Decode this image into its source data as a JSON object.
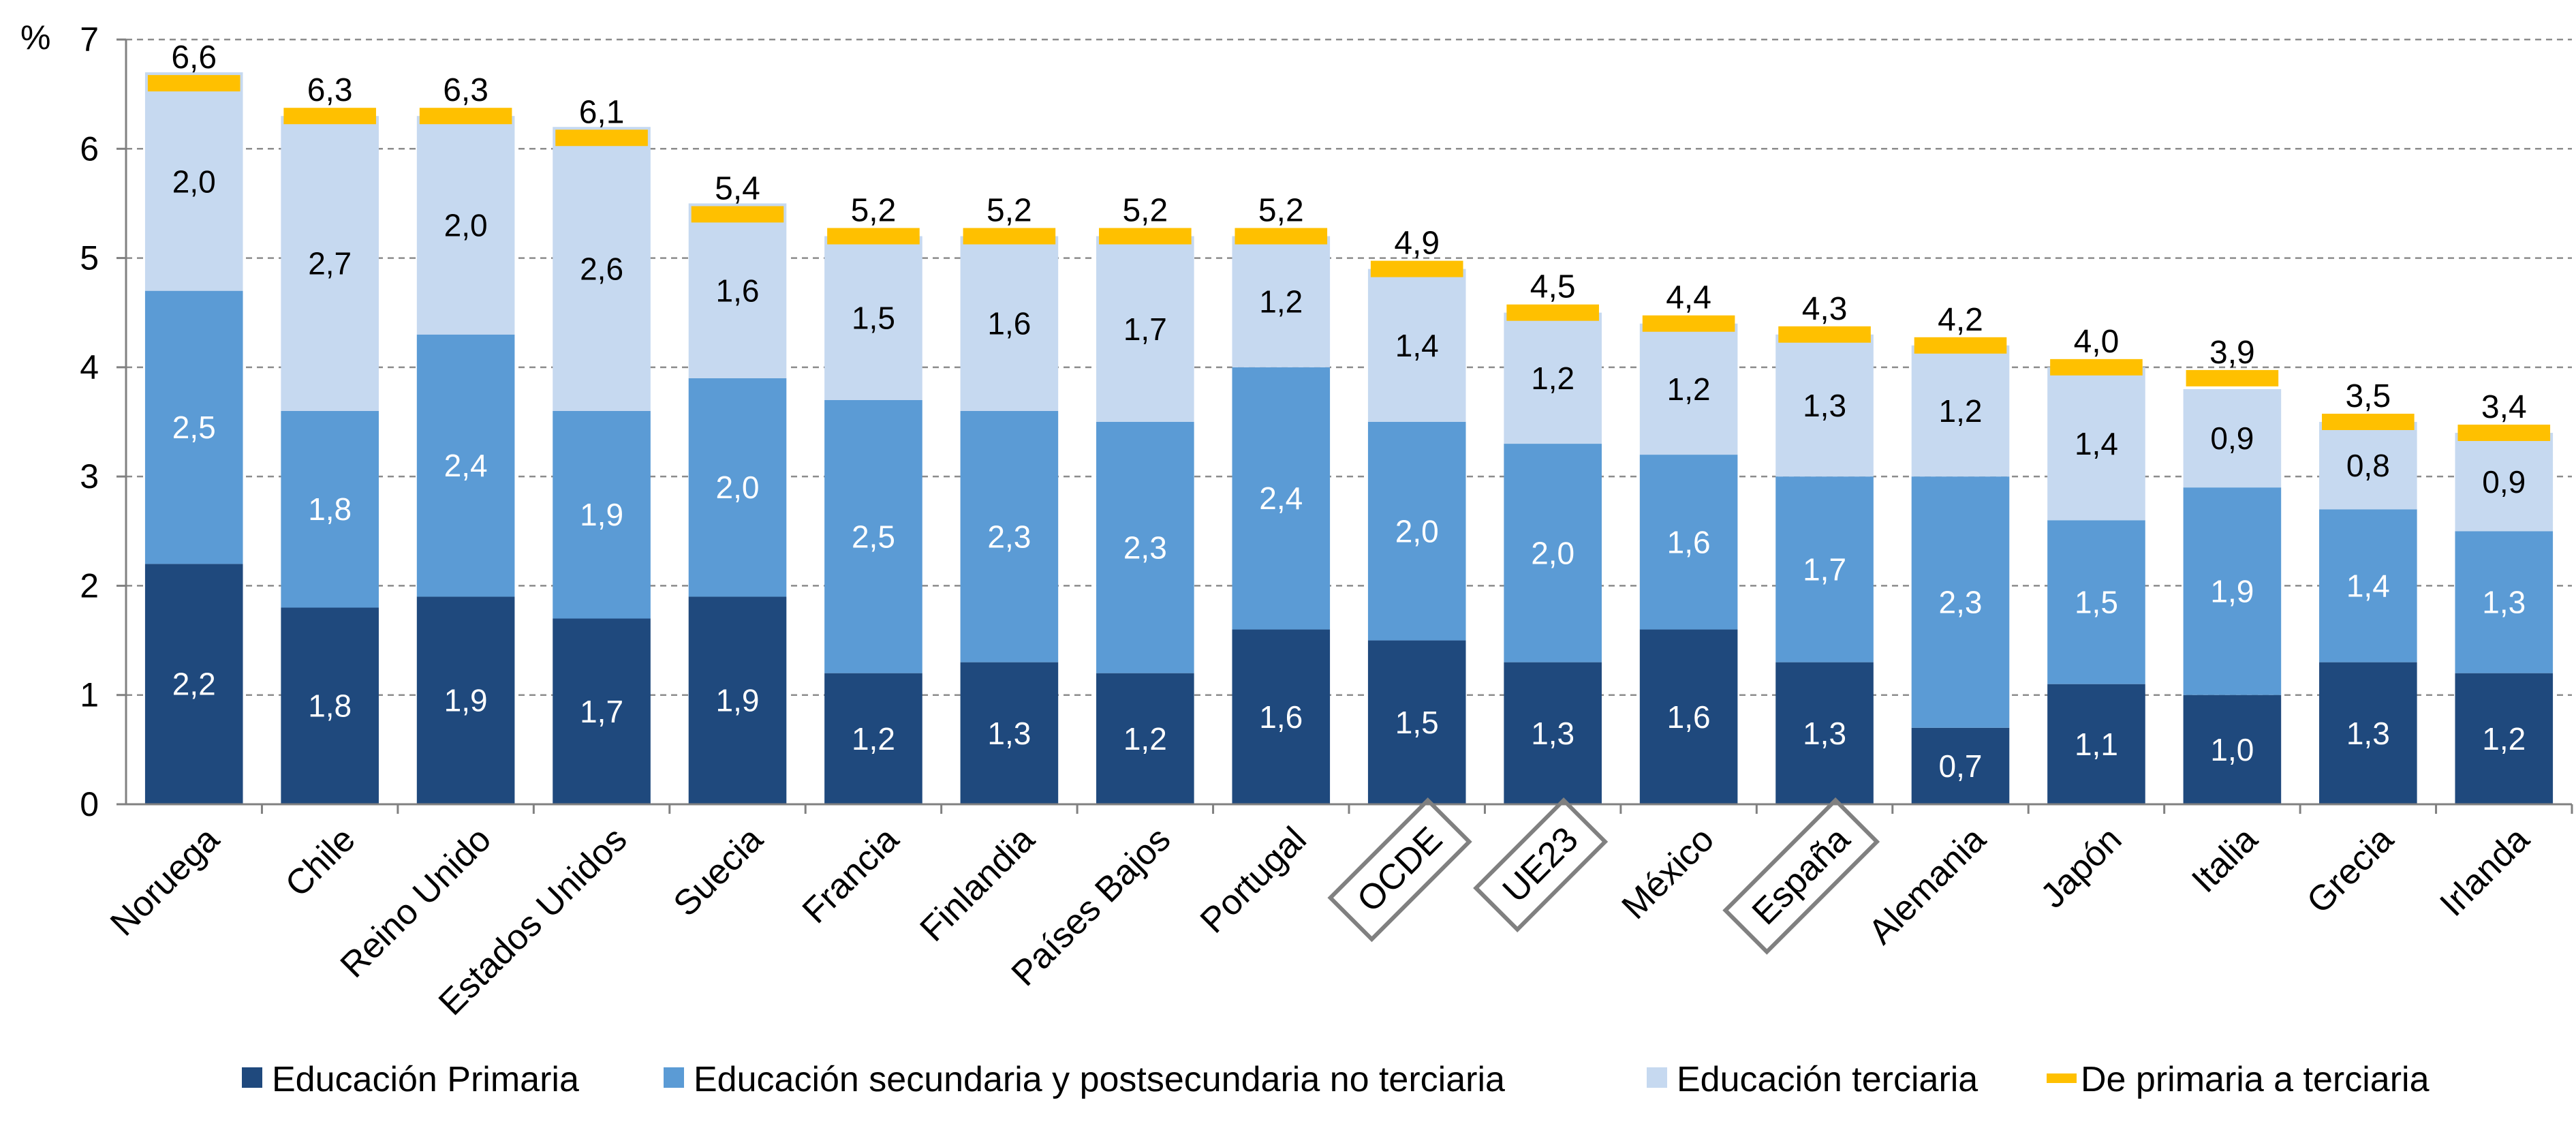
{
  "chart_data": {
    "type": "bar",
    "stacked": true,
    "y_unit_label": "%",
    "ylim": [
      0,
      7
    ],
    "yticks": [
      "0",
      "1",
      "2",
      "3",
      "4",
      "5",
      "6",
      "7"
    ],
    "grid": "horizontal dashed",
    "legend_position": "bottom",
    "categories": [
      "Noruega",
      "Chile",
      "Reino Unido",
      "Estados Unidos",
      "Suecia",
      "Francia",
      "Finlandia",
      "Países Bajos",
      "Portugal",
      "OCDE",
      "UE23",
      "México",
      "España",
      "Alemania",
      "Japón",
      "Italia",
      "Grecia",
      "Irlanda"
    ],
    "highlighted_categories": [
      "OCDE",
      "UE23",
      "España"
    ],
    "series": [
      {
        "name": "Educación Primaria",
        "color": "#1F497D",
        "values": [
          2.2,
          1.8,
          1.9,
          1.7,
          1.9,
          1.2,
          1.3,
          1.2,
          1.6,
          1.5,
          1.3,
          1.6,
          1.3,
          0.7,
          1.1,
          1.0,
          1.3,
          1.2
        ],
        "labels": [
          "2,2",
          "1,8",
          "1,9",
          "1,7",
          "1,9",
          "1,2",
          "1,3",
          "1,2",
          "1,6",
          "1,5",
          "1,3",
          "1,6",
          "1,3",
          "0,7",
          "1,1",
          "1,0",
          "1,3",
          "1,2"
        ]
      },
      {
        "name": "Educación secundaria y postsecundaria no terciaria",
        "color": "#5B9BD5",
        "values": [
          2.5,
          1.8,
          2.4,
          1.9,
          2.0,
          2.5,
          2.3,
          2.3,
          2.4,
          2.0,
          2.0,
          1.6,
          1.7,
          2.3,
          1.5,
          1.9,
          1.4,
          1.3
        ],
        "labels": [
          "2,5",
          "1,8",
          "2,4",
          "1,9",
          "2,0",
          "2,5",
          "2,3",
          "2,3",
          "2,4",
          "2,0",
          "2,0",
          "1,6",
          "1,7",
          "2,3",
          "1,5",
          "1,9",
          "1,4",
          "1,3"
        ]
      },
      {
        "name": "Educación terciaria",
        "color": "#C6D9F0",
        "values": [
          2.0,
          2.7,
          2.0,
          2.6,
          1.6,
          1.5,
          1.6,
          1.7,
          1.2,
          1.4,
          1.2,
          1.2,
          1.3,
          1.2,
          1.4,
          0.9,
          0.8,
          0.9
        ],
        "labels": [
          "2,0",
          "2,7",
          "2,0",
          "2,6",
          "1,6",
          "1,5",
          "1,6",
          "1,7",
          "1,2",
          "1,4",
          "1,2",
          "1,2",
          "1,3",
          "1,2",
          "1,4",
          "0,9",
          "0,8",
          "0,9"
        ]
      }
    ],
    "totals": {
      "name": "De primaria a terciaria",
      "color": "#FFC000",
      "values": [
        6.6,
        6.3,
        6.3,
        6.1,
        5.4,
        5.2,
        5.2,
        5.2,
        5.2,
        4.9,
        4.5,
        4.4,
        4.3,
        4.2,
        4.0,
        3.9,
        3.5,
        3.4
      ],
      "labels": [
        "6,6",
        "6,3",
        "6,3",
        "6,1",
        "5,4",
        "5,2",
        "5,2",
        "5,2",
        "5,2",
        "4,9",
        "4,5",
        "4,4",
        "4,3",
        "4,2",
        "4,0",
        "3,9",
        "3,5",
        "3,4"
      ]
    }
  }
}
